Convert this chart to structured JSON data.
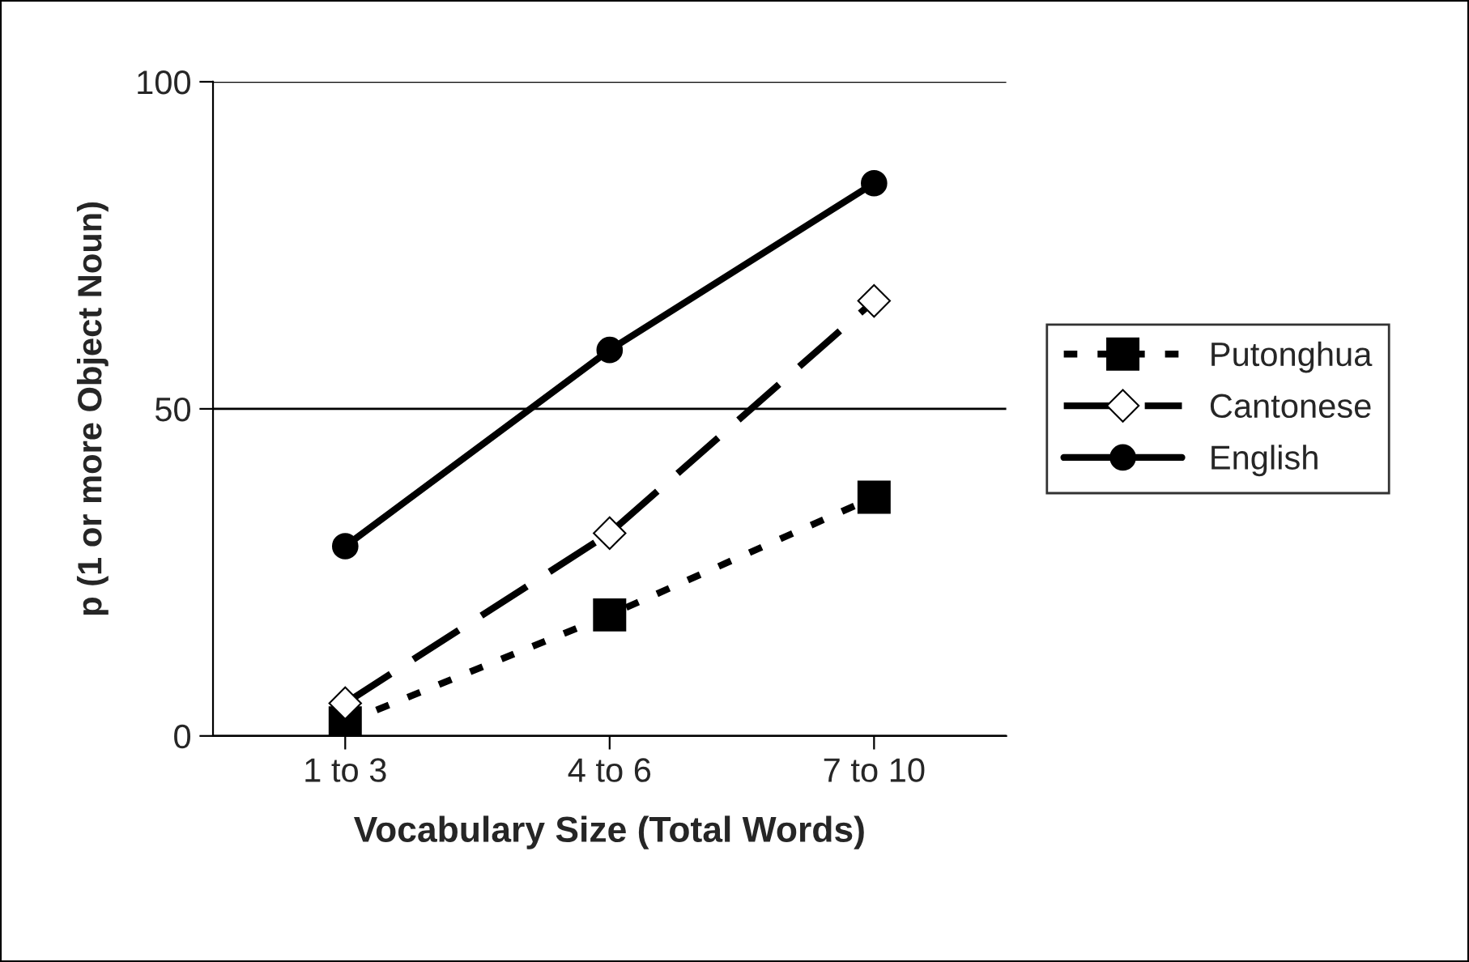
{
  "chart_data": {
    "type": "line",
    "xlabel": "Vocabulary Size (Total Words)",
    "ylabel": "p (1 or more Object Noun)",
    "categories": [
      "1 to 3",
      "4 to 6",
      "7 to 10"
    ],
    "series": [
      {
        "name": "Putonghua",
        "color": "#000000",
        "values": [
          2,
          18.5,
          36.5
        ],
        "marker": "square",
        "line_style": "dotted"
      },
      {
        "name": "Cantonese",
        "color": "#000000",
        "values": [
          5,
          31,
          66.5
        ],
        "marker": "diamond",
        "line_style": "dashed"
      },
      {
        "name": "English",
        "color": "#000000",
        "values": [
          29,
          59,
          84.5
        ],
        "marker": "circle",
        "line_style": "solid"
      }
    ],
    "ylim": [
      0,
      100
    ],
    "yticks": [
      0,
      50,
      100
    ],
    "grid": "y",
    "legend": "right"
  }
}
